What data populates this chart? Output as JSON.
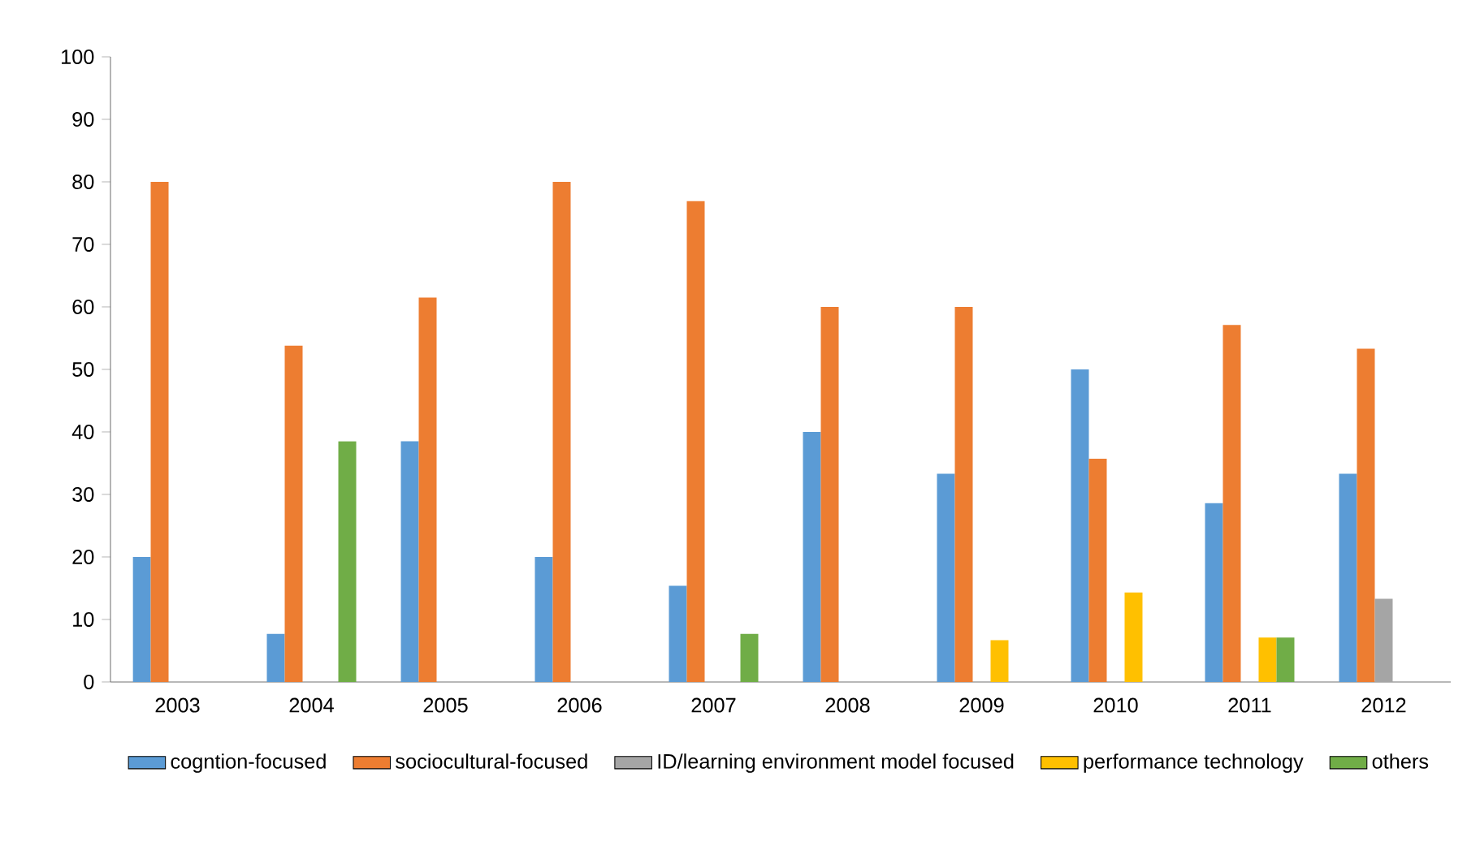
{
  "chart_data": {
    "type": "bar",
    "categories": [
      "2003",
      "2004",
      "2005",
      "2006",
      "2007",
      "2008",
      "2009",
      "2010",
      "2011",
      "2012"
    ],
    "series": [
      {
        "name": "cogntion-focused",
        "color": "#5b9bd5",
        "values": [
          20,
          7.7,
          38.5,
          20,
          15.4,
          40,
          33.3,
          50,
          28.6,
          33.3
        ]
      },
      {
        "name": "sociocultural-focused",
        "color": "#ed7d31",
        "values": [
          80,
          53.8,
          61.5,
          80,
          76.9,
          60,
          60,
          35.7,
          57.1,
          53.3
        ]
      },
      {
        "name": "ID/learning environment model focused",
        "color": "#a5a5a5",
        "values": [
          null,
          null,
          null,
          null,
          null,
          null,
          null,
          null,
          null,
          13.3
        ]
      },
      {
        "name": "performance technology",
        "color": "#ffc000",
        "values": [
          null,
          null,
          null,
          null,
          null,
          null,
          6.7,
          14.3,
          7.1,
          null
        ]
      },
      {
        "name": "others",
        "color": "#70ad47",
        "values": [
          null,
          38.5,
          null,
          null,
          7.7,
          null,
          null,
          null,
          7.1,
          null
        ]
      }
    ],
    "ylim": [
      0,
      100
    ],
    "yticks": [
      0,
      10,
      20,
      30,
      40,
      50,
      60,
      70,
      80,
      90,
      100
    ],
    "grid": false,
    "legend": "bottom"
  }
}
